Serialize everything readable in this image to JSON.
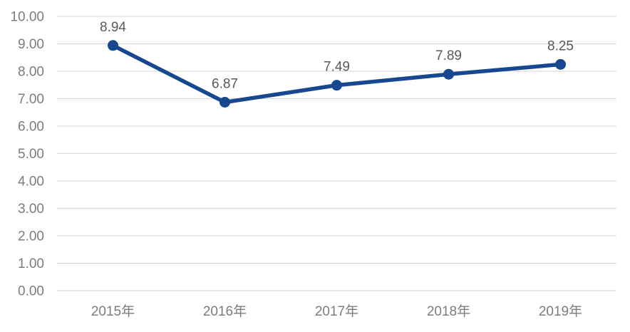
{
  "chart_data": {
    "type": "line",
    "title": "",
    "xlabel": "",
    "ylabel": "",
    "categories": [
      "2015年",
      "2016年",
      "2017年",
      "2018年",
      "2019年"
    ],
    "series": [
      {
        "name": "value",
        "values": [
          8.94,
          6.87,
          7.49,
          7.89,
          8.25
        ],
        "data_labels": [
          "8.94",
          "6.87",
          "7.49",
          "7.89",
          "8.25"
        ]
      }
    ],
    "ylim": [
      0,
      10
    ],
    "y_tick_step": 1,
    "y_tick_labels": [
      "0.00",
      "1.00",
      "2.00",
      "3.00",
      "4.00",
      "5.00",
      "6.00",
      "7.00",
      "8.00",
      "9.00",
      "10.00"
    ],
    "grid": "horizontal",
    "legend_position": "none",
    "marker": "circle",
    "colors": {
      "line": "#17478F",
      "marker": "#17478F",
      "gridline": "#DADADA",
      "axis_text": "#7C7C7C",
      "data_label_text": "#595959",
      "background": "#FFFFFF"
    }
  }
}
